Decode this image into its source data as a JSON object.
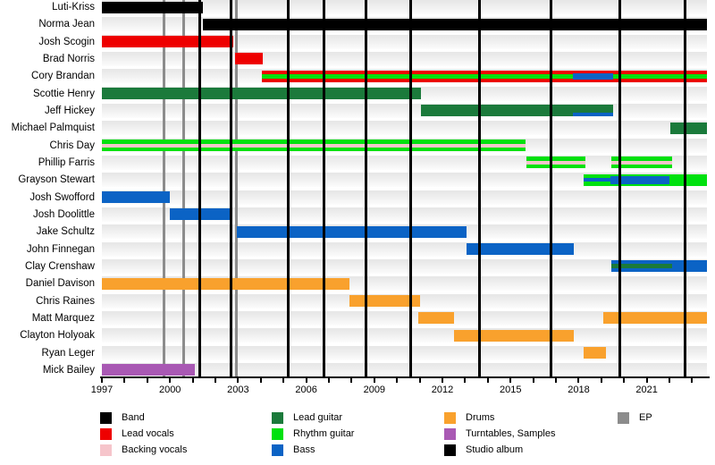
{
  "chart_data": {
    "type": "timeline",
    "x_domain": [
      1997,
      2023.65
    ],
    "x_labeled_ticks": [
      "1997",
      "2000",
      "2003",
      "2006",
      "2009",
      "2012",
      "2015",
      "2018",
      "2021"
    ],
    "x_labeled_tick_years": [
      1997,
      2000,
      2003,
      2006,
      2009,
      2012,
      2015,
      2018,
      2021
    ],
    "x_minor_tick_start": 1997,
    "x_minor_tick_end": 2023,
    "colors": {
      "band": "#000000",
      "lead_vocals": "#ee0000",
      "backing_vocals": "#f6c5cb",
      "lead_guitar": "#1b7a3b",
      "rhythm_guitar": "#00e10f",
      "bass": "#0b63c5",
      "drums": "#f9a12d",
      "turntables": "#a959b4",
      "studio_album": "#000000",
      "ep": "#8c8c8c"
    },
    "members": [
      {
        "name": "Luti-Kriss",
        "bars": [
          {
            "color": "band",
            "start": 1997,
            "end": 2001.45
          }
        ]
      },
      {
        "name": "Norma Jean",
        "bars": [
          {
            "color": "band",
            "start": 2001.45,
            "end": 2023.65
          }
        ]
      },
      {
        "name": "Josh Scogin",
        "bars": [
          {
            "color": "lead_vocals",
            "start": 1997,
            "end": 2002.8
          }
        ]
      },
      {
        "name": "Brad Norris",
        "bars": [
          {
            "color": "lead_vocals",
            "start": 2002.85,
            "end": 2004.1
          }
        ]
      },
      {
        "name": "Cory Brandan",
        "bars": [
          {
            "color": "lead_vocals",
            "start": 2004.05,
            "end": 2023.65
          },
          {
            "color": "rhythm_guitar",
            "start": 2004.05,
            "end": 2023.65,
            "stripe": "center",
            "h": 5
          },
          {
            "color": "bass",
            "start": 2017.75,
            "end": 2019.5,
            "stripe": "center",
            "h": 7
          }
        ]
      },
      {
        "name": "Scottie Henry",
        "bars": [
          {
            "color": "lead_guitar",
            "start": 1997,
            "end": 2011.05
          }
        ]
      },
      {
        "name": "Jeff Hickey",
        "bars": [
          {
            "color": "lead_guitar",
            "start": 2011.05,
            "end": 2019.5
          },
          {
            "color": "bass",
            "start": 2017.75,
            "end": 2019.5,
            "stripe": "bottom",
            "h": 4
          }
        ]
      },
      {
        "name": "Michael Palmquist",
        "bars": [
          {
            "color": "lead_guitar",
            "start": 2022.05,
            "end": 2023.65
          }
        ]
      },
      {
        "name": "Chris Day",
        "bars": [
          {
            "color": "rhythm_guitar",
            "start": 1997,
            "end": 2015.65
          },
          {
            "color": "backing_vocals",
            "start": 1997,
            "end": 2015.65,
            "stripe": "center",
            "h": 4
          }
        ]
      },
      {
        "name": "Phillip Farris",
        "bars": [
          {
            "color": "rhythm_guitar",
            "start": 2015.7,
            "end": 2018.3
          },
          {
            "color": "backing_vocals",
            "start": 2015.7,
            "end": 2018.3,
            "stripe": "center",
            "h": 4
          },
          {
            "color": "rhythm_guitar",
            "start": 2019.45,
            "end": 2022.1
          },
          {
            "color": "backing_vocals",
            "start": 2019.45,
            "end": 2022.1,
            "stripe": "center",
            "h": 4
          }
        ]
      },
      {
        "name": "Grayson Stewart",
        "bars": [
          {
            "color": "rhythm_guitar",
            "start": 2018.2,
            "end": 2023.65
          },
          {
            "color": "bass",
            "start": 2018.2,
            "end": 2019.4,
            "stripe": "center",
            "h": 4
          },
          {
            "color": "bass",
            "start": 2019.4,
            "end": 2022.0,
            "stripe": "center",
            "h": 9
          }
        ]
      },
      {
        "name": "Josh Swofford",
        "bars": [
          {
            "color": "bass",
            "start": 1997,
            "end": 2000.0
          }
        ]
      },
      {
        "name": "Josh Doolittle",
        "bars": [
          {
            "color": "bass",
            "start": 2000.0,
            "end": 2002.75
          }
        ]
      },
      {
        "name": "Jake Schultz",
        "bars": [
          {
            "color": "bass",
            "start": 2002.95,
            "end": 2013.05
          }
        ]
      },
      {
        "name": "John Finnegan",
        "bars": [
          {
            "color": "bass",
            "start": 2013.05,
            "end": 2017.8
          }
        ]
      },
      {
        "name": "Clay Crenshaw",
        "bars": [
          {
            "color": "bass",
            "start": 2019.45,
            "end": 2023.65
          },
          {
            "color": "lead_guitar",
            "start": 2019.45,
            "end": 2022.1,
            "stripe": "center",
            "h": 5
          }
        ]
      },
      {
        "name": "Daniel Davison",
        "bars": [
          {
            "color": "drums",
            "start": 1997,
            "end": 2007.9
          }
        ]
      },
      {
        "name": "Chris Raines",
        "bars": [
          {
            "color": "drums",
            "start": 2007.9,
            "end": 2011.0
          }
        ]
      },
      {
        "name": "Matt Marquez",
        "bars": [
          {
            "color": "drums",
            "start": 2010.95,
            "end": 2012.5
          },
          {
            "color": "drums",
            "start": 2019.1,
            "end": 2023.65
          }
        ]
      },
      {
        "name": "Clayton Holyoak",
        "bars": [
          {
            "color": "drums",
            "start": 2012.5,
            "end": 2017.8
          }
        ]
      },
      {
        "name": "Ryan Leger",
        "bars": [
          {
            "color": "drums",
            "start": 2018.2,
            "end": 2019.2
          }
        ]
      },
      {
        "name": "Mick Bailey",
        "bars": [
          {
            "color": "turntables",
            "start": 1997,
            "end": 2001.1
          }
        ]
      }
    ],
    "events": {
      "studio_album_years": [
        2001.3,
        2002.67,
        2005.19,
        2006.77,
        2008.64,
        2010.62,
        2013.65,
        2016.77,
        2019.81,
        2022.7
      ],
      "ep_years": [
        1999.73,
        2000.61,
        2002.94
      ]
    },
    "legend": {
      "columns": [
        [
          {
            "label": "Band",
            "color": "band"
          },
          {
            "label": "Lead vocals",
            "color": "lead_vocals"
          },
          {
            "label": "Backing vocals",
            "color": "backing_vocals"
          }
        ],
        [
          {
            "label": "Lead guitar",
            "color": "lead_guitar"
          },
          {
            "label": "Rhythm guitar",
            "color": "rhythm_guitar"
          },
          {
            "label": "Bass",
            "color": "bass"
          }
        ],
        [
          {
            "label": "Drums",
            "color": "drums"
          },
          {
            "label": "Turntables, Samples",
            "color": "turntables"
          },
          {
            "label": "Studio album",
            "color": "studio_album"
          }
        ],
        [
          {
            "label": "EP",
            "color": "ep"
          }
        ]
      ]
    }
  }
}
